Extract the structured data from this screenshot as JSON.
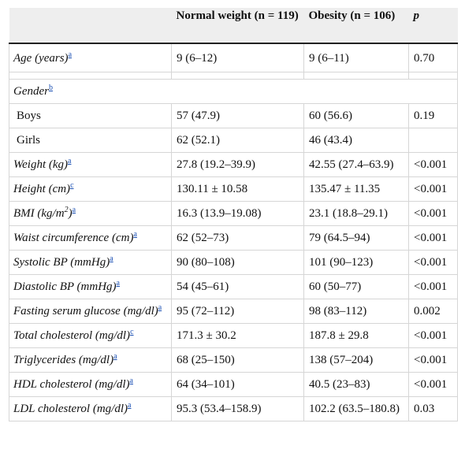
{
  "table": {
    "headers": [
      "",
      "Normal weight (n = 119)",
      "Obesity (n = 106)",
      "p"
    ],
    "age": {
      "label": "Age (years)",
      "note": "a",
      "normal": "9 (6–12)",
      "obesity": "9 (6–11)",
      "p": "0.70"
    },
    "gender": {
      "label": "Gender",
      "note": "b"
    },
    "boys": {
      "label": "Boys",
      "normal": "57 (47.9)",
      "obesity": "60 (56.6)",
      "p": "0.19"
    },
    "girls": {
      "label": "Girls",
      "normal": "62 (52.1)",
      "obesity": "46 (43.4)",
      "p": ""
    },
    "rows": [
      {
        "label": "Weight (kg)",
        "note": "a",
        "normal": "27.8 (19.2–39.9)",
        "obesity": "42.55 (27.4–63.9)",
        "p": "<0.001"
      },
      {
        "label": "Height (cm)",
        "note": "c",
        "normal": "130.11 ± 10.58",
        "obesity": "135.47 ± 11.35",
        "p": "<0.001"
      },
      {
        "label_pre": "BMI (kg/m",
        "label_exp": "2",
        "label_post": ")",
        "note": "a",
        "normal": "16.3 (13.9–19.08)",
        "obesity": "23.1 (18.8–29.1)",
        "p": "<0.001"
      },
      {
        "label": "Waist circumference (cm)",
        "note": "a",
        "normal": "62 (52–73)",
        "obesity": "79 (64.5–94)",
        "p": "<0.001"
      },
      {
        "label": "Systolic BP (mmHg)",
        "note": "a",
        "normal": "90 (80–108)",
        "obesity": "101 (90–123)",
        "p": "<0.001"
      },
      {
        "label": "Diastolic BP (mmHg)",
        "note": "a",
        "normal": "54 (45–61)",
        "obesity": "60 (50–77)",
        "p": "<0.001"
      },
      {
        "label": "Fasting serum glucose (mg/dl)",
        "note": "a",
        "normal": "95 (72–112)",
        "obesity": "98 (83–112)",
        "p": "0.002"
      },
      {
        "label": "Total cholesterol (mg/dl)",
        "note": "c",
        "normal": "171.3 ± 30.2",
        "obesity": "187.8 ± 29.8",
        "p": "<0.001"
      },
      {
        "label": "Triglycerides (mg/dl)",
        "note": "a",
        "normal": "68 (25–150)",
        "obesity": "138 (57–204)",
        "p": "<0.001"
      },
      {
        "label": "HDL cholesterol (mg/dl)",
        "note": "a",
        "normal": "64 (34–101)",
        "obesity": "40.5 (23–83)",
        "p": "<0.001"
      },
      {
        "label": "LDL cholesterol (mg/dl)",
        "note": "a",
        "normal": "95.3 (53.4–158.9)",
        "obesity": "102.2 (63.5–180.8)",
        "p": "0.03"
      }
    ]
  }
}
